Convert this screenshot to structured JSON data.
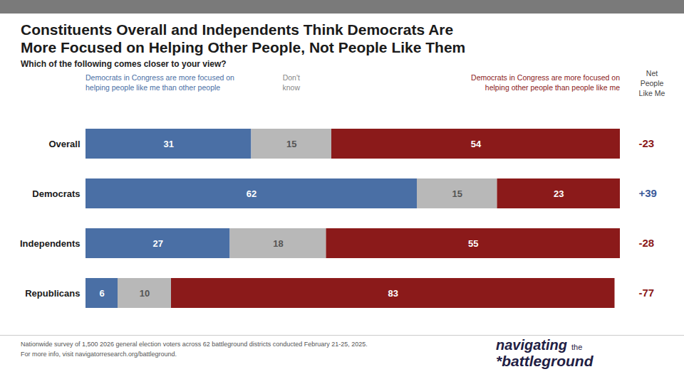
{
  "chart_data": {
    "type": "bar",
    "orientation": "horizontal",
    "stacked": true,
    "data_labels": true,
    "tick_labels": "y",
    "legend": "top",
    "title": "Constituents Overall and Independents Think Democrats Are\nMore Focused on Helping Other People, Not People Like Them",
    "subtitle": "Which of the following comes closer to your view?",
    "categories": [
      "Overall",
      "Democrats",
      "Independents",
      "Republicans"
    ],
    "series": [
      {
        "name": "Democrats in Congress are more focused on\nhelping people like me than other people",
        "color": "#4a6fa5",
        "values": [
          31,
          62,
          27,
          6
        ]
      },
      {
        "name": "Don't\nknow",
        "color": "#b8b8b8",
        "values": [
          15,
          15,
          18,
          10
        ]
      },
      {
        "name": "Democrats in Congress are more focused on\nhelping other people than people like me",
        "color": "#8b1a1a",
        "values": [
          54,
          23,
          55,
          83
        ]
      }
    ],
    "xlim": [
      0,
      100
    ],
    "net": {
      "label": "Net\nPeople\nLike Me",
      "values": [
        -23,
        39,
        -28,
        -77
      ],
      "value_labels": [
        "-23",
        "+39",
        "-28",
        "-77"
      ],
      "colors": [
        "#8b1a1a",
        "#3a5a99",
        "#8b1a1a",
        "#8b1a1a"
      ]
    },
    "footer": "Nationwide survey of 1,500 2026 general election voters across 62 battleground districts conducted February 21-25, 2025.\nFor more info, visit navigatorresearch.org/battleground.",
    "brand": {
      "texts": [
        "navigating",
        "the",
        "*battleground"
      ],
      "color": "#1f2044"
    }
  }
}
